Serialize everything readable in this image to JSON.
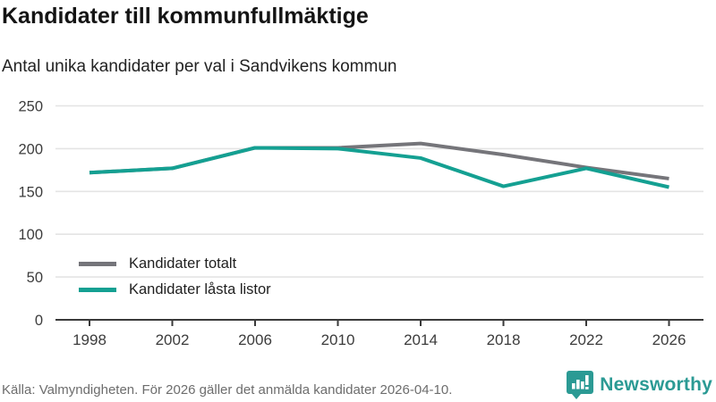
{
  "header": {
    "title": "Kandidater till kommunfullmäktige",
    "subtitle": "Antal unika kandidater per val i Sandvikens kommun"
  },
  "chart_data": {
    "type": "line",
    "x": [
      1998,
      2002,
      2006,
      2010,
      2014,
      2018,
      2022,
      2026
    ],
    "series": [
      {
        "name": "Kandidater totalt",
        "color": "#75757a",
        "values": [
          172,
          177,
          201,
          201,
          206,
          193,
          178,
          165
        ]
      },
      {
        "name": "Kandidater låsta listor",
        "color": "#14a092",
        "values": [
          172,
          177,
          201,
          200,
          189,
          156,
          177,
          155
        ]
      }
    ],
    "ylim": [
      0,
      250
    ],
    "yticks": [
      0,
      50,
      100,
      150,
      200,
      250
    ],
    "grid": "horizontal",
    "legend_position": "inside-bottom-left",
    "title": "Kandidater till kommunfullmäktige",
    "xlabel": "",
    "ylabel": ""
  },
  "colors": {
    "grid": "#e4e4e4",
    "axis": "#3a3a3a",
    "tick_label": "#3c3c3c",
    "brand": "#2b9a94"
  },
  "footer": {
    "source": "Källa: Valmyndigheten. För 2026 gäller det anmälda kandidater 2026-04-10.",
    "brand": "Newsworthy"
  }
}
